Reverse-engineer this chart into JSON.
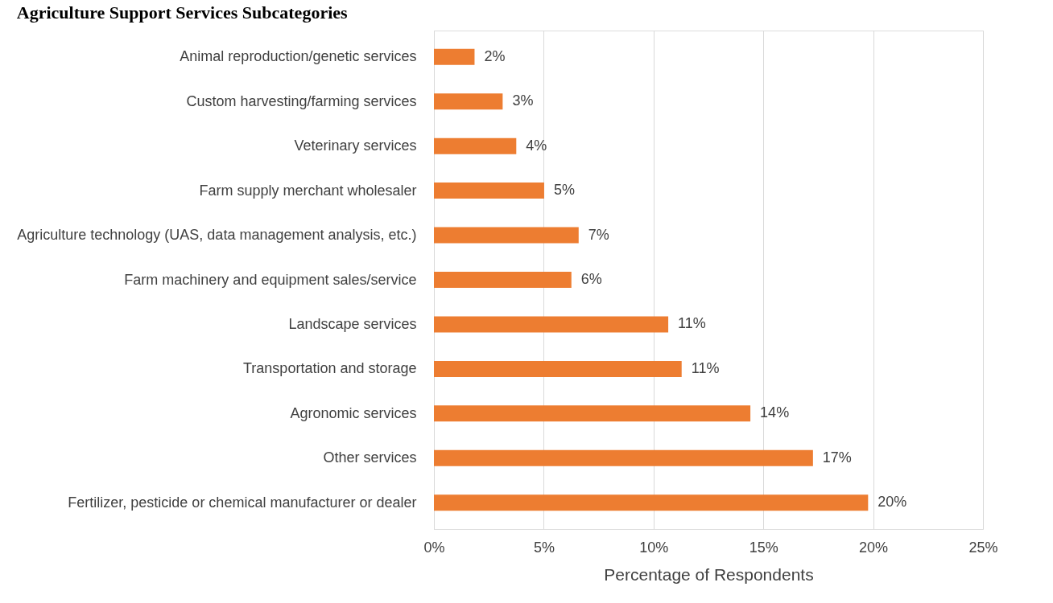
{
  "chart_data": {
    "type": "bar",
    "orientation": "horizontal",
    "title": "Agriculture Support Services Subcategories",
    "xlabel": "Percentage of Respondents",
    "categories": [
      "Animal reproduction/genetic services",
      "Custom harvesting/farming services",
      "Veterinary services",
      "Farm supply merchant wholesaler",
      "Agriculture technology (UAS, data management analysis, etc.)",
      "Farm machinery and equipment sales/service",
      "Landscape services",
      "Transportation and storage",
      "Agronomic services",
      "Other services",
      "Fertilizer, pesticide or chemical manufacturer or dealer"
    ],
    "values": [
      1.85,
      3.13,
      3.75,
      5.02,
      6.59,
      6.26,
      10.67,
      11.28,
      14.41,
      17.26,
      19.77
    ],
    "value_labels": [
      "2%",
      "3%",
      "4%",
      "5%",
      "7%",
      "6%",
      "11%",
      "11%",
      "14%",
      "17%",
      "20%"
    ],
    "color": "#ed7d31",
    "xlim": [
      0,
      25
    ],
    "xticks": [
      {
        "value": 0,
        "label": "0%"
      },
      {
        "value": 5,
        "label": "5%"
      },
      {
        "value": 10,
        "label": "10%"
      },
      {
        "value": 15,
        "label": "15%"
      },
      {
        "value": 20,
        "label": "20%"
      },
      {
        "value": 25,
        "label": "25%"
      }
    ],
    "grid": "x"
  }
}
